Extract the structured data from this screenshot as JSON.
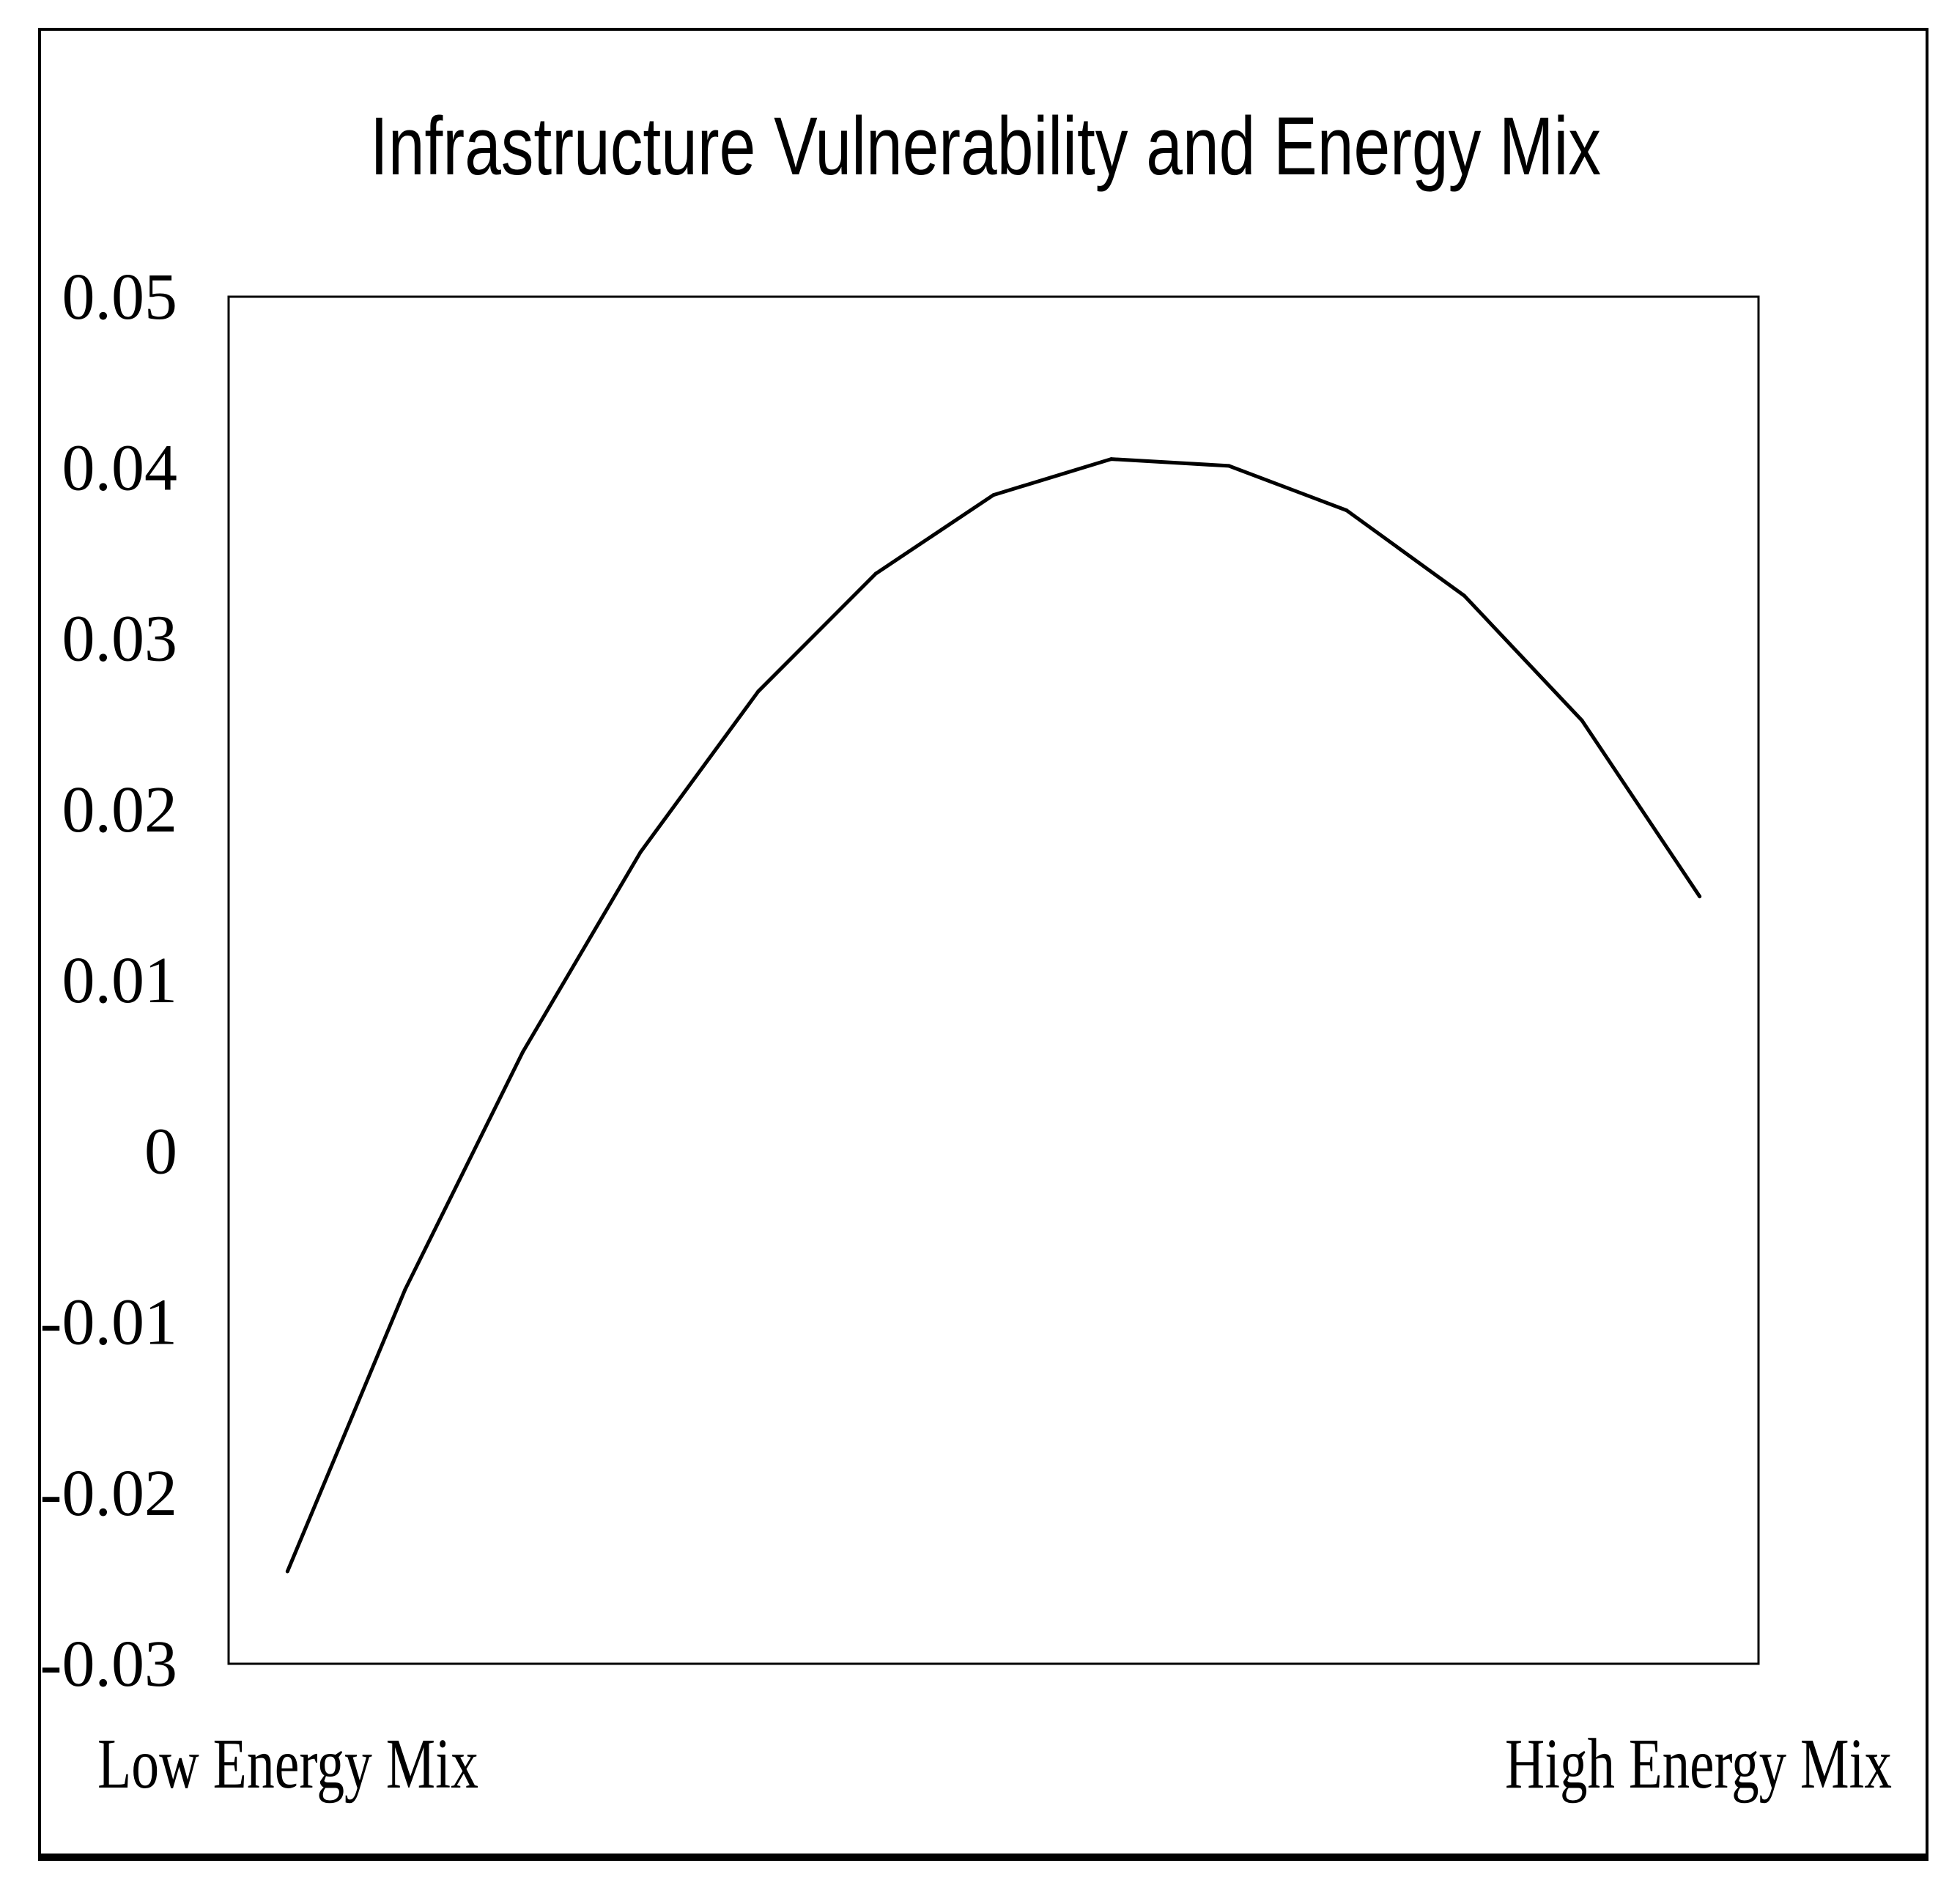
{
  "chart_data": {
    "type": "line",
    "title": "Infrastructure Vulnerability and Energy Mix",
    "xlabel": "",
    "ylabel": "",
    "x_label_left": "Low Energy Mix",
    "x_label_right": "High Energy Mix",
    "ylim": [
      -0.03,
      0.05
    ],
    "yticks": [
      "0.05",
      "0.04",
      "0.03",
      "0.02",
      "0.01",
      "0",
      "-0.01",
      "-0.02",
      "-0.03"
    ],
    "ytick_values": [
      0.05,
      0.04,
      0.03,
      0.02,
      0.01,
      0,
      -0.01,
      -0.02,
      -0.03
    ],
    "grid": false,
    "series": [
      {
        "name": "Infrastructure Vulnerability",
        "color": "#000000",
        "x": [
          1,
          2,
          3,
          4,
          5,
          6,
          7,
          8,
          9,
          10,
          11,
          12,
          13
        ],
        "values": [
          -0.0246,
          -0.0081,
          0.0058,
          0.0175,
          0.0269,
          0.0338,
          0.0384,
          0.0405,
          0.0401,
          0.0375,
          0.0325,
          0.0252,
          0.0149
        ]
      }
    ],
    "xlim": [
      0.5,
      13.5
    ]
  }
}
